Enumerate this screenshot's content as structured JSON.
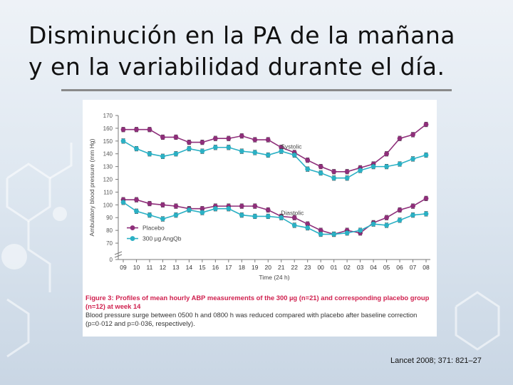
{
  "slide": {
    "title_line1": "Disminución en la PA de la mañana",
    "title_line2": "y en la variabilidad durante el día.",
    "citation": "Lancet 2008; 371: 821–27"
  },
  "figure": {
    "caption_title": "Figure 3: Profiles of mean hourly ABP measurements of the 300 µg (n=21) and corresponding placebo group (n=12) at week 14",
    "caption_body": "Blood pressure surge between 0500 h and 0800 h was reduced compared with placebo after baseline correction (p=0·012 and p=0·036, respectively)."
  },
  "chart_data": {
    "type": "line",
    "xlabel": "Time (24 h)",
    "ylabel": "Ambulatory blood pressure (mm Hg)",
    "categories": [
      "09",
      "10",
      "11",
      "12",
      "13",
      "14",
      "15",
      "16",
      "17",
      "18",
      "19",
      "20",
      "21",
      "22",
      "23",
      "00",
      "01",
      "02",
      "03",
      "04",
      "05",
      "06",
      "07",
      "08"
    ],
    "yticks": [
      0,
      70,
      80,
      90,
      100,
      110,
      120,
      130,
      140,
      150,
      160,
      170
    ],
    "ylim": [
      0,
      170
    ],
    "axis_break": [
      0,
      65
    ],
    "annotations": [
      {
        "text": "Systolic",
        "x": "20",
        "y": 144
      },
      {
        "text": "Diastolic",
        "x": "20",
        "y": 92
      }
    ],
    "legend": {
      "placement": "bottom-left",
      "entries": [
        {
          "label": "Placebo",
          "color": "#8e2f7a"
        },
        {
          "label": "300 µg AngQb",
          "color": "#2bb0c4"
        }
      ]
    },
    "series": [
      {
        "name": "Placebo",
        "group": "Systolic",
        "color": "#8e2f7a",
        "values": [
          159,
          159,
          159,
          153,
          153,
          149,
          149,
          152,
          152,
          154,
          151,
          151,
          145,
          141,
          135,
          130,
          126,
          126,
          129,
          132,
          140,
          152,
          155,
          163
        ]
      },
      {
        "name": "300 µg AngQb",
        "group": "Systolic",
        "color": "#2bb0c4",
        "values": [
          150,
          144,
          140,
          138,
          140,
          144,
          142,
          145,
          145,
          142,
          141,
          139,
          142,
          139,
          128,
          125,
          121,
          121,
          127,
          130,
          130,
          132,
          136,
          139
        ]
      },
      {
        "name": "Placebo",
        "group": "Diastolic",
        "color": "#8e2f7a",
        "values": [
          104,
          104,
          101,
          100,
          99,
          97,
          97,
          99,
          99,
          99,
          99,
          96,
          91,
          90,
          85,
          80,
          77,
          80,
          78,
          86,
          90,
          96,
          99,
          105
        ]
      },
      {
        "name": "300 µg AngQb",
        "group": "Diastolic",
        "color": "#2bb0c4",
        "values": [
          102,
          95,
          92,
          89,
          92,
          96,
          94,
          97,
          97,
          92,
          91,
          91,
          90,
          84,
          82,
          77,
          77,
          78,
          80,
          85,
          84,
          88,
          92,
          93
        ]
      }
    ]
  }
}
